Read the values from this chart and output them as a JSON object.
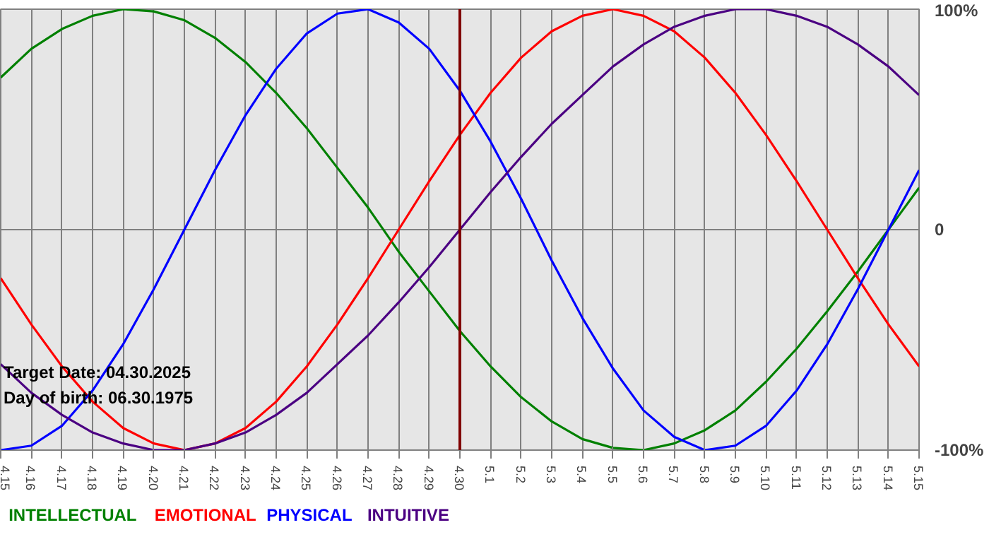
{
  "chart_data": {
    "type": "line",
    "categories": [
      "4.15",
      "4.16",
      "4.17",
      "4.18",
      "4.19",
      "4.20",
      "4.21",
      "4.22",
      "4.23",
      "4.24",
      "4.25",
      "4.26",
      "4.27",
      "4.28",
      "4.29",
      "4.30",
      "5.1",
      "5.2",
      "5.3",
      "5.4",
      "5.5",
      "5.6",
      "5.7",
      "5.8",
      "5.9",
      "5.10",
      "5.11",
      "5.12",
      "5.13",
      "5.14",
      "5.15"
    ],
    "series": [
      {
        "name": "INTELLECTUAL",
        "color": "#008000",
        "values": [
          69,
          82,
          91,
          97,
          100,
          99,
          95,
          87,
          76,
          62,
          46,
          28,
          10,
          -10,
          -28,
          -46,
          -62,
          -76,
          -87,
          -95,
          -99,
          -100,
          -97,
          -91,
          -82,
          -69,
          -54,
          -37,
          -19,
          0,
          19
        ]
      },
      {
        "name": "EMOTIONAL",
        "color": "#ff0000",
        "values": [
          -22,
          -43,
          -62,
          -78,
          -90,
          -97,
          -100,
          -97,
          -90,
          -78,
          -62,
          -43,
          -22,
          0,
          22,
          43,
          62,
          78,
          90,
          97,
          100,
          97,
          90,
          78,
          62,
          43,
          22,
          0,
          -22,
          -43,
          -62
        ]
      },
      {
        "name": "PHYSICAL",
        "color": "#0000ff",
        "values": [
          -100,
          -98,
          -89,
          -73,
          -52,
          -27,
          0,
          27,
          52,
          73,
          89,
          98,
          100,
          94,
          82,
          63,
          40,
          14,
          -14,
          -40,
          -63,
          -82,
          -94,
          -100,
          -98,
          -89,
          -73,
          -52,
          -27,
          0,
          27
        ]
      },
      {
        "name": "INTUITIVE",
        "color": "#4b0082",
        "values": [
          -61,
          -74,
          -84,
          -92,
          -97,
          -100,
          -100,
          -97,
          -92,
          -84,
          -74,
          -61,
          -48,
          -33,
          -17,
          0,
          17,
          33,
          48,
          61,
          74,
          84,
          92,
          97,
          100,
          100,
          97,
          92,
          84,
          74,
          61
        ]
      }
    ],
    "ylim": [
      -100,
      100
    ],
    "yticks": [
      {
        "value": 100,
        "label": "100%"
      },
      0,
      {
        "value": -100,
        "label": "-100%"
      }
    ],
    "ref_lines": [
      {
        "axis": "x",
        "value": "4.30",
        "color": "#800000"
      }
    ],
    "annotations": [
      "Target Date: 04.30.2025",
      "Day of birth: 06.30.1975"
    ],
    "grid": true,
    "marker": "none",
    "line_style": "solid"
  }
}
